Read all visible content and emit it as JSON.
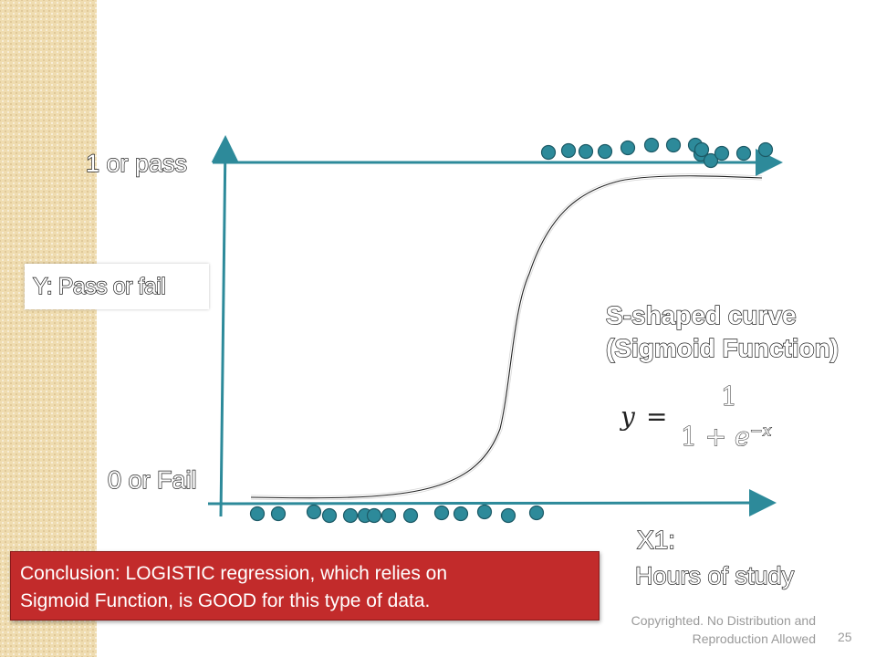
{
  "slide": {
    "page_number": "25",
    "copyright_line1": "Copyrighted. No Distribution and",
    "copyright_line2": "Reproduction Allowed"
  },
  "diagram": {
    "y_top_label": "1 or pass",
    "y_bottom_label": "0 or Fail",
    "y_axis_title": "Y: Pass or fail",
    "x_axis_title_line1": "X1:",
    "x_axis_title_line2": "Hours of study",
    "curve_caption_line1": "S-shaped curve",
    "curve_caption_line2": "(Sigmoid Function)",
    "formula": {
      "lhs": "y",
      "equals": "=",
      "numerator": "1",
      "denominator_base": "1 + ",
      "denominator_e": "e",
      "denominator_exp": "−x"
    },
    "pass_points_count": 14,
    "fail_points_count": 16,
    "colors": {
      "axis": "#2d8a9a",
      "point_fill": "#2d8a9a",
      "point_stroke": "#1d5a66",
      "curve": "#222222"
    }
  },
  "conclusion": {
    "line1": "Conclusion: LOGISTIC regression, which relies on",
    "line2": "Sigmoid Function, is GOOD for this type of data.",
    "background": "#c22b2b"
  }
}
